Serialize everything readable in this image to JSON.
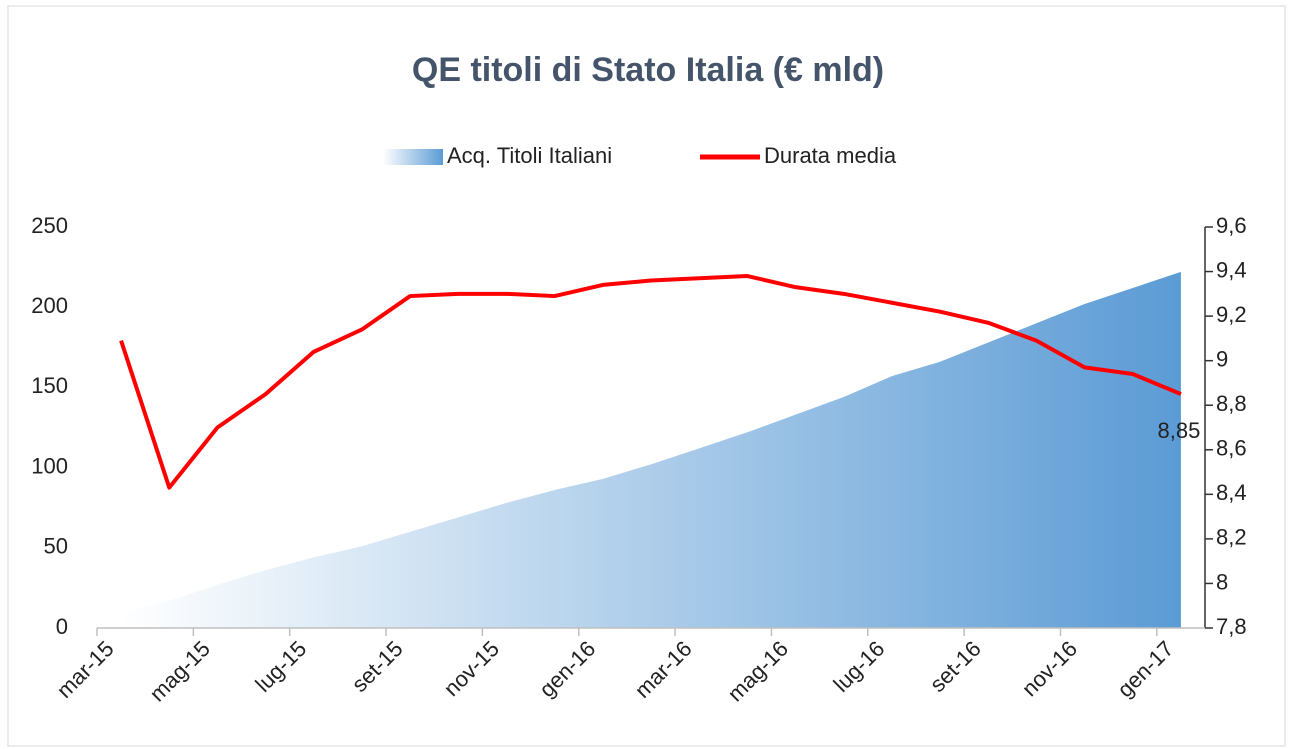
{
  "chart_data": {
    "type": "area_line",
    "title": "QE titoli di Stato Italia (€ mld)",
    "categories": [
      "mar-15",
      null,
      "mag-15",
      null,
      "lug-15",
      null,
      "set-15",
      null,
      "nov-15",
      null,
      "gen-16",
      null,
      "mar-16",
      null,
      "mag-16",
      null,
      "lug-16",
      null,
      "set-16",
      null,
      "nov-16",
      null,
      "gen-17"
    ],
    "series": [
      {
        "name": "Acq. Titoli Italiani",
        "type": "area",
        "color": "#5b9bd5",
        "axis": "y",
        "values": [
          9,
          17,
          27,
          36,
          44,
          51,
          60,
          69,
          78,
          86,
          93,
          102,
          112,
          122,
          133,
          144,
          157,
          166,
          178,
          190,
          202,
          212,
          222
        ]
      },
      {
        "name": "Durata media",
        "type": "line",
        "color": "#ff0000",
        "axis": "y2",
        "values": [
          9.09,
          8.43,
          8.7,
          8.85,
          9.04,
          9.14,
          9.29,
          9.3,
          9.3,
          9.29,
          9.34,
          9.36,
          9.37,
          9.38,
          9.33,
          9.3,
          9.26,
          9.22,
          9.17,
          9.09,
          8.97,
          8.94,
          8.85
        ],
        "value_labels": [
          null,
          null,
          null,
          null,
          null,
          null,
          null,
          null,
          null,
          null,
          null,
          null,
          null,
          null,
          null,
          null,
          null,
          null,
          null,
          null,
          null,
          null,
          "8,85"
        ]
      }
    ],
    "ylim": [
      0,
      250
    ],
    "yticks": [
      0,
      50,
      100,
      150,
      200,
      250
    ],
    "y2lim": [
      7.8,
      9.6
    ],
    "y2ticks": [
      {
        "value": 7.8,
        "label": "7,8"
      },
      8,
      {
        "value": 8.2,
        "label": "8,2"
      },
      {
        "value": 8.4,
        "label": "8,4"
      },
      {
        "value": 8.6,
        "label": "8,6"
      },
      {
        "value": 8.8,
        "label": "8,8"
      },
      9,
      {
        "value": 9.2,
        "label": "9,2"
      },
      {
        "value": 9.4,
        "label": "9,4"
      },
      {
        "value": 9.6,
        "label": "9,6"
      }
    ],
    "legend": "top"
  }
}
